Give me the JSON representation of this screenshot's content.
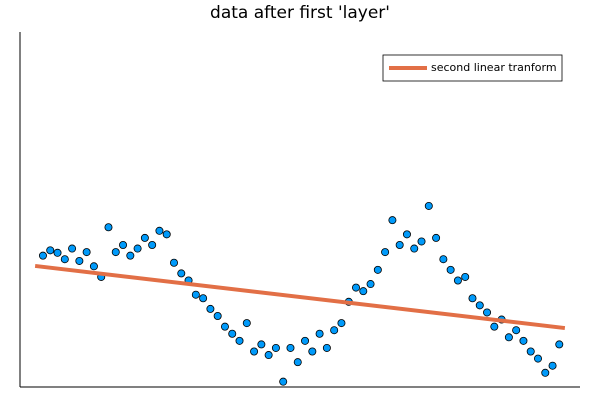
{
  "chart_data": {
    "type": "scatter",
    "title": "data after first 'layer'",
    "xlim": [
      0,
      100
    ],
    "ylim": [
      0,
      100
    ],
    "legend": "top-right",
    "series": [
      {
        "type": "scatter",
        "color": "#009afa",
        "x": [
          4.1,
          5.4,
          6.7,
          8.0,
          9.3,
          10.6,
          11.9,
          13.2,
          14.5,
          15.8,
          17.1,
          18.4,
          19.7,
          21.0,
          22.3,
          23.6,
          24.9,
          26.2,
          27.5,
          28.8,
          30.1,
          31.4,
          32.7,
          34.0,
          35.3,
          36.6,
          37.9,
          39.2,
          40.5,
          41.8,
          43.1,
          44.4,
          45.7,
          47.0,
          48.3,
          49.6,
          50.9,
          52.2,
          53.5,
          54.8,
          56.1,
          57.4,
          58.7,
          60.0,
          61.3,
          62.6,
          63.9,
          65.2,
          66.5,
          67.8,
          69.1,
          70.4,
          71.7,
          73.0,
          74.3,
          75.6,
          76.9,
          78.2,
          79.5,
          80.8,
          82.1,
          83.4,
          84.7,
          86.0,
          87.3,
          88.6,
          89.9,
          91.2,
          92.5,
          93.8,
          95.1,
          96.3
        ],
        "values": [
          37,
          38.5,
          37.8,
          36,
          39,
          35.5,
          38,
          34,
          31,
          45,
          38,
          40,
          37,
          39,
          42,
          40,
          44,
          43,
          35,
          32,
          30,
          26,
          25,
          22,
          20,
          17,
          15,
          13,
          18,
          10,
          12,
          9,
          11,
          1.5,
          11,
          7,
          13,
          10,
          15,
          11,
          16,
          18,
          24,
          28,
          27,
          29,
          33,
          38,
          47,
          40,
          43,
          39,
          41,
          51,
          42,
          36,
          33,
          30,
          31,
          25,
          23,
          21,
          17,
          19,
          14,
          16,
          13,
          10,
          8,
          4,
          6,
          12
        ]
      },
      {
        "type": "line",
        "name": "second linear tranform",
        "color": "#e26f46",
        "x": [
          2.7,
          97.3
        ],
        "values": [
          34.1,
          16.6
        ]
      }
    ]
  }
}
